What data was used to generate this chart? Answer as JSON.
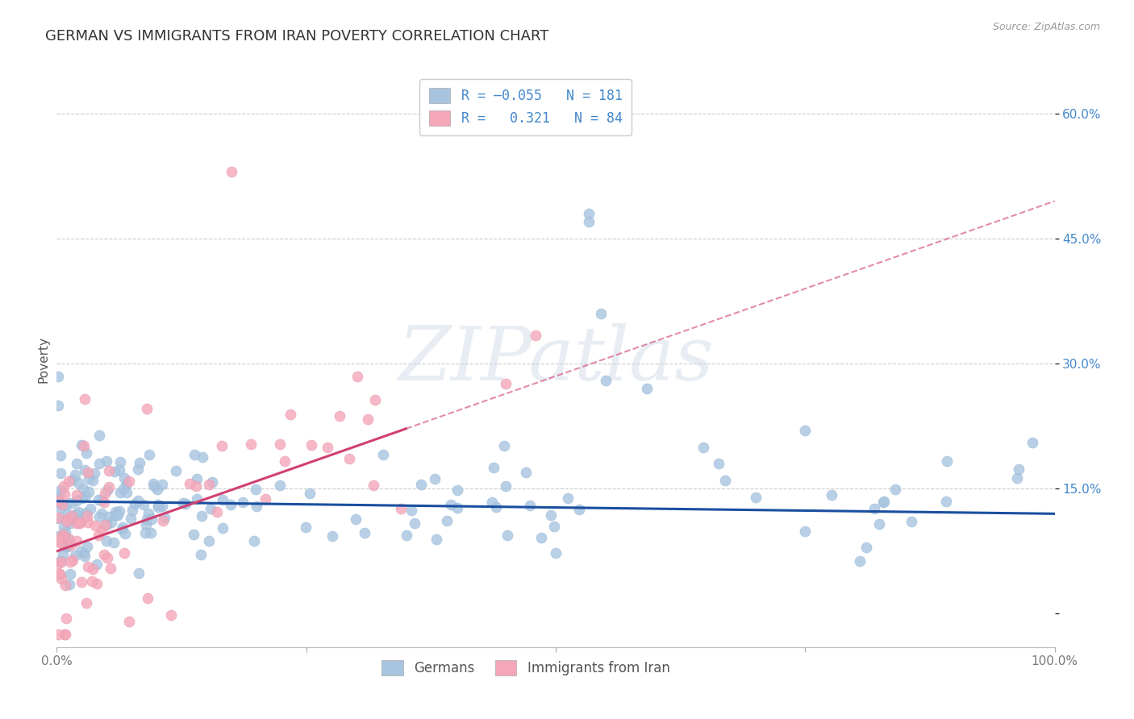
{
  "title": "GERMAN VS IMMIGRANTS FROM IRAN POVERTY CORRELATION CHART",
  "source": "Source: ZipAtlas.com",
  "ylabel": "Poverty",
  "xlim": [
    0,
    1
  ],
  "ylim": [
    -0.04,
    0.65
  ],
  "yticks": [
    0.0,
    0.15,
    0.3,
    0.45,
    0.6
  ],
  "ytick_labels": [
    "",
    "15.0%",
    "30.0%",
    "45.0%",
    "60.0%"
  ],
  "xticks": [
    0.0,
    0.25,
    0.5,
    0.75,
    1.0
  ],
  "xtick_labels": [
    "0.0%",
    "",
    "",
    "",
    "100.0%"
  ],
  "german_color": "#a8c4e0",
  "iran_color": "#f4a7b9",
  "german_line_color": "#1a4fa0",
  "iran_line_color": "#d04070",
  "background_color": "#ffffff",
  "grid_color": "#cccccc",
  "title_fontsize": 13,
  "axis_label_fontsize": 11,
  "tick_fontsize": 11,
  "seed": 99,
  "n_german": 181,
  "n_iran": 84
}
